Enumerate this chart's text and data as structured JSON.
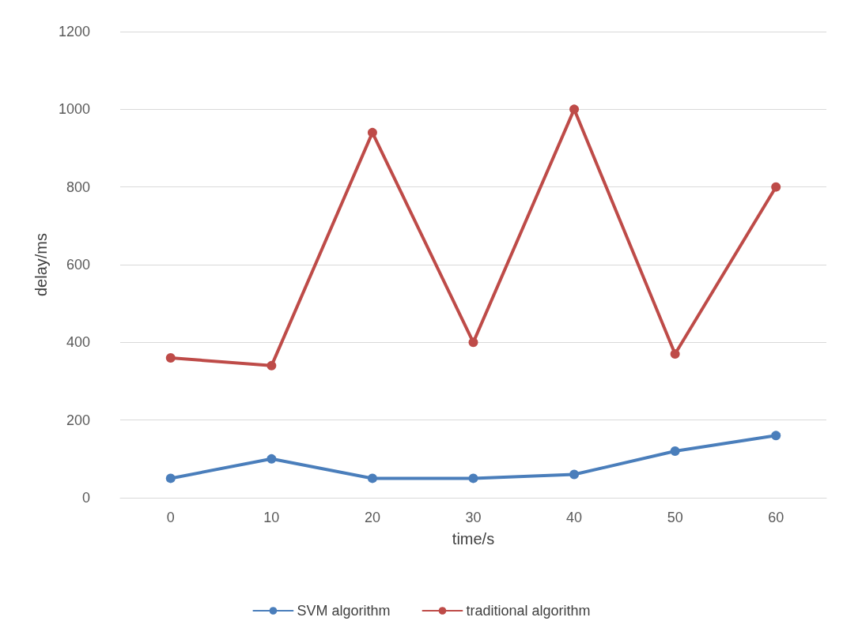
{
  "chart_data": {
    "type": "line",
    "xlabel": "time/s",
    "ylabel": "delay/ms",
    "categories": [
      "0",
      "10",
      "20",
      "30",
      "40",
      "50",
      "60"
    ],
    "series": [
      {
        "name": "SVM algorithm",
        "color": "#4a7ebb",
        "values": [
          50,
          100,
          50,
          50,
          60,
          120,
          160
        ]
      },
      {
        "name": "traditional algorithm",
        "color": "#be4b48",
        "values": [
          360,
          340,
          940,
          400,
          1000,
          370,
          800
        ]
      }
    ],
    "ylim": [
      0,
      1200
    ],
    "yticks": [
      0,
      200,
      400,
      600,
      800,
      1000,
      1200
    ],
    "grid": "y",
    "legend": "bottom",
    "marker": "circle",
    "line_style": "solid"
  }
}
